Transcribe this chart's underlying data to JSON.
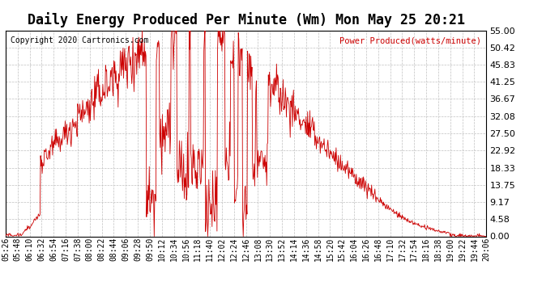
{
  "title": "Daily Energy Produced Per Minute (Wm) Mon May 25 20:21",
  "copyright": "Copyright 2020 Cartronics.com",
  "legend_label": "Power Produced(watts/minute)",
  "y_ticks": [
    0.0,
    4.58,
    9.17,
    13.75,
    18.33,
    22.92,
    27.5,
    32.08,
    36.67,
    41.25,
    45.83,
    50.42,
    55.0
  ],
  "ylim": [
    0.0,
    55.0
  ],
  "line_color": "#cc0000",
  "background_color": "#ffffff",
  "grid_color": "#c0c0c0",
  "title_color": "#000000",
  "copyright_color": "#000000",
  "legend_color": "#cc0000",
  "x_tick_labels": [
    "05:26",
    "05:48",
    "06:10",
    "06:32",
    "06:54",
    "07:16",
    "07:38",
    "08:00",
    "08:22",
    "08:44",
    "09:06",
    "09:28",
    "09:50",
    "10:12",
    "10:34",
    "10:56",
    "11:18",
    "11:40",
    "12:02",
    "12:24",
    "12:46",
    "13:08",
    "13:30",
    "13:52",
    "14:14",
    "14:36",
    "14:58",
    "15:20",
    "15:42",
    "16:04",
    "16:26",
    "16:48",
    "17:10",
    "17:32",
    "17:54",
    "18:16",
    "18:38",
    "19:00",
    "19:22",
    "19:44",
    "20:06"
  ],
  "title_fontsize": 12,
  "tick_fontsize": 8,
  "figwidth": 6.9,
  "figheight": 3.75,
  "dpi": 100
}
